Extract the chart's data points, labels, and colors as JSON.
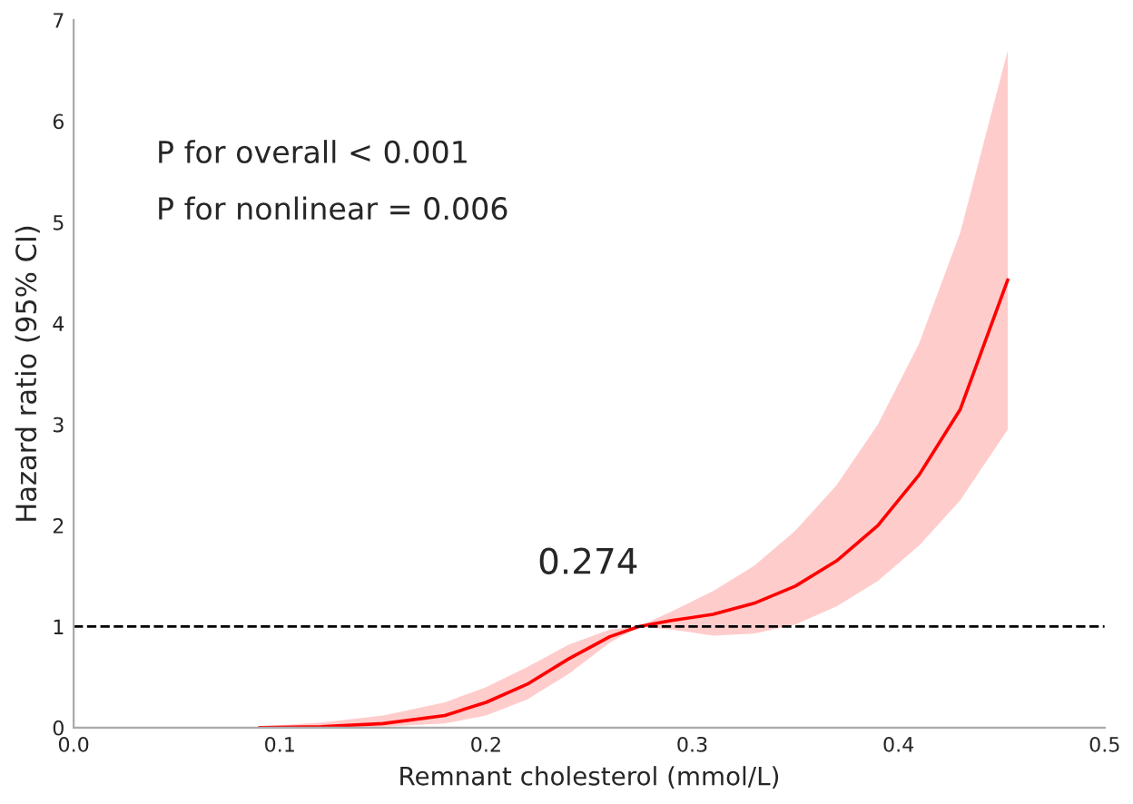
{
  "chart_data": {
    "type": "line",
    "xlabel": "Remnant cholesterol (mmol/L)",
    "ylabel": "Hazard ratio (95% CI)",
    "xlim": [
      0.0,
      0.5
    ],
    "xticks": [
      {
        "value": 0.0,
        "label": "0.0"
      },
      0.1,
      0.2,
      0.3,
      0.4,
      0.5
    ],
    "ylim": [
      0,
      7
    ],
    "yticks": [
      0,
      1,
      2,
      3,
      4,
      5,
      6,
      7
    ],
    "x": [
      0.09,
      0.12,
      0.15,
      0.18,
      0.2,
      0.22,
      0.24,
      0.26,
      0.274,
      0.29,
      0.31,
      0.33,
      0.35,
      0.37,
      0.39,
      0.41,
      0.43,
      0.453
    ],
    "series": [
      {
        "color": "#ff0000",
        "values": [
          0,
          0.01,
          0.04,
          0.12,
          0.25,
          0.43,
          0.68,
          0.9,
          1.0,
          1.06,
          1.12,
          1.23,
          1.4,
          1.65,
          2.0,
          2.5,
          3.15,
          4.43
        ],
        "lower": [
          0,
          0,
          0.01,
          0.04,
          0.12,
          0.28,
          0.53,
          0.84,
          1.0,
          0.97,
          0.91,
          0.93,
          1.02,
          1.2,
          1.45,
          1.8,
          2.25,
          2.95
        ],
        "upper": [
          0.01,
          0.05,
          0.12,
          0.25,
          0.4,
          0.6,
          0.82,
          0.97,
          1.0,
          1.15,
          1.35,
          1.6,
          1.95,
          2.4,
          3.0,
          3.8,
          4.9,
          6.7
        ]
      }
    ],
    "ref_lines": [
      {
        "axis": "y",
        "value": 1,
        "color": "#000000",
        "line_style": "dashed"
      }
    ],
    "annotations": [
      {
        "text": "0.274",
        "x": 0.274,
        "y": 1
      },
      "P for overall < 0.001",
      "P for nonlinear = 0.006"
    ],
    "grid": false,
    "legend": false,
    "marker": "none",
    "line_style": "solid"
  }
}
